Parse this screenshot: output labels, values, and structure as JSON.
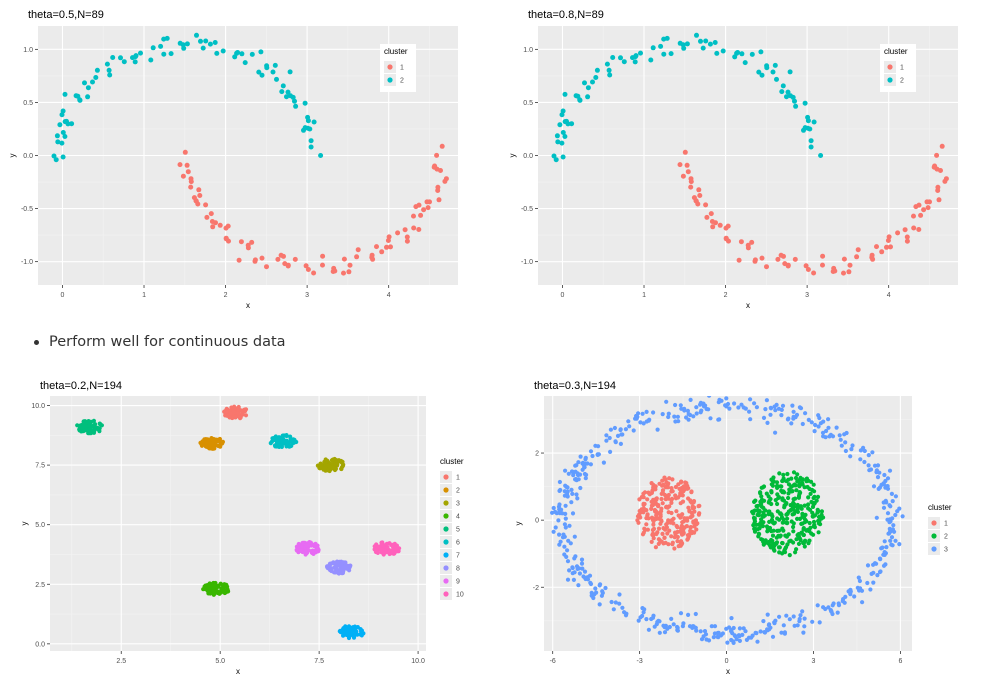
{
  "bullet": {
    "text": "Perform well for continuous data"
  },
  "colors": {
    "panel_bg": "#ebebeb",
    "grid_major": "#ffffff",
    "grid_minor": "#f3f3f3",
    "axis_text": "#4d4d4d",
    "title_text": "#000000"
  },
  "chart_data": [
    {
      "type": "scatter",
      "title": "theta=0.5,N=89",
      "xlabel": "x",
      "ylabel": "y",
      "xlim": [
        -0.3,
        4.85
      ],
      "ylim": [
        -1.22,
        1.22
      ],
      "x_ticks": [
        0,
        1,
        2,
        3,
        4
      ],
      "x_tick_labels": [
        "0",
        "1",
        "2",
        "3",
        "4"
      ],
      "y_ticks": [
        -1,
        -0.5,
        0,
        0.5,
        1
      ],
      "y_tick_labels": [
        "-1.0",
        "-0.5",
        "0.0",
        "0.5",
        "1.0"
      ],
      "grid": true,
      "legend": {
        "title": "cluster",
        "placement": "top-right inside",
        "entries": [
          "1",
          "2"
        ]
      },
      "series": [
        {
          "name": "1",
          "color": "#f8766d",
          "shape": "upper-moon",
          "params": {
            "cx": 3.1,
            "cy": 0,
            "rx": 1.55,
            "ry": 1.05,
            "from": 0,
            "to": 3.14,
            "flip": true,
            "n": 90,
            "noise": 0.05,
            "seed": 11
          }
        },
        {
          "name": "2",
          "color": "#00bfc4",
          "shape": "upper-moon",
          "params": {
            "cx": 1.5,
            "cy": 0,
            "rx": 1.55,
            "ry": 1.05,
            "from": 0.05,
            "to": 3.18,
            "flip": false,
            "n": 90,
            "noise": 0.05,
            "seed": 7
          }
        }
      ]
    },
    {
      "type": "scatter",
      "title": "theta=0.8,N=89",
      "xlabel": "x",
      "ylabel": "y",
      "xlim": [
        -0.3,
        4.85
      ],
      "ylim": [
        -1.22,
        1.22
      ],
      "x_ticks": [
        0,
        1,
        2,
        3,
        4
      ],
      "x_tick_labels": [
        "0",
        "1",
        "2",
        "3",
        "4"
      ],
      "y_ticks": [
        -1,
        -0.5,
        0,
        0.5,
        1
      ],
      "y_tick_labels": [
        "-1.0",
        "-0.5",
        "0.0",
        "0.5",
        "1.0"
      ],
      "grid": true,
      "legend": {
        "title": "cluster",
        "placement": "top-right inside",
        "entries": [
          "1",
          "2"
        ]
      },
      "series": [
        {
          "name": "1",
          "color": "#f8766d",
          "shape": "upper-moon",
          "params": {
            "cx": 3.1,
            "cy": 0,
            "rx": 1.55,
            "ry": 1.05,
            "from": 0,
            "to": 3.14,
            "flip": true,
            "n": 90,
            "noise": 0.05,
            "seed": 11
          }
        },
        {
          "name": "2",
          "color": "#00bfc4",
          "shape": "upper-moon",
          "params": {
            "cx": 1.5,
            "cy": 0,
            "rx": 1.55,
            "ry": 1.05,
            "from": 0.05,
            "to": 3.18,
            "flip": false,
            "n": 90,
            "noise": 0.05,
            "seed": 7
          }
        }
      ]
    },
    {
      "type": "scatter",
      "title": "theta=0.2,N=194",
      "xlabel": "x",
      "ylabel": "y",
      "xlim": [
        0.7,
        10.2
      ],
      "ylim": [
        -0.3,
        10.4
      ],
      "x_ticks": [
        2.5,
        5.0,
        7.5,
        10.0
      ],
      "x_tick_labels": [
        "2.5",
        "5.0",
        "7.5",
        "10.0"
      ],
      "y_ticks": [
        0,
        2.5,
        5.0,
        7.5,
        10.0
      ],
      "y_tick_labels": [
        "0.0",
        "2.5",
        "5.0",
        "7.5",
        "10.0"
      ],
      "grid": true,
      "legend": {
        "title": "cluster",
        "placement": "right",
        "entries": [
          "1",
          "2",
          "3",
          "4",
          "5",
          "6",
          "7",
          "8",
          "9",
          "10"
        ]
      },
      "series": [
        {
          "name": "1",
          "color": "#f8766d",
          "shape": "blob",
          "params": {
            "cx": 5.4,
            "cy": 9.7,
            "r": 0.32,
            "n": 70,
            "seed": 21
          }
        },
        {
          "name": "2",
          "color": "#d89000",
          "shape": "blob",
          "params": {
            "cx": 4.8,
            "cy": 8.4,
            "r": 0.32,
            "n": 70,
            "seed": 22
          }
        },
        {
          "name": "3",
          "color": "#a3a500",
          "shape": "blob",
          "params": {
            "cx": 7.8,
            "cy": 7.5,
            "r": 0.34,
            "n": 70,
            "seed": 23
          }
        },
        {
          "name": "4",
          "color": "#39b600",
          "shape": "blob",
          "params": {
            "cx": 4.9,
            "cy": 2.3,
            "r": 0.34,
            "n": 70,
            "seed": 24
          }
        },
        {
          "name": "5",
          "color": "#00bf7d",
          "shape": "blob",
          "params": {
            "cx": 1.7,
            "cy": 9.1,
            "r": 0.34,
            "n": 70,
            "seed": 25
          }
        },
        {
          "name": "6",
          "color": "#00bfc4",
          "shape": "blob",
          "params": {
            "cx": 6.6,
            "cy": 8.5,
            "r": 0.34,
            "n": 70,
            "seed": 26
          }
        },
        {
          "name": "7",
          "color": "#00b0f6",
          "shape": "blob",
          "params": {
            "cx": 8.3,
            "cy": 0.5,
            "r": 0.34,
            "n": 70,
            "seed": 27
          }
        },
        {
          "name": "8",
          "color": "#9590ff",
          "shape": "blob",
          "params": {
            "cx": 8.0,
            "cy": 3.2,
            "r": 0.32,
            "n": 70,
            "seed": 28
          }
        },
        {
          "name": "9",
          "color": "#e76bf3",
          "shape": "blob",
          "params": {
            "cx": 7.2,
            "cy": 4.0,
            "r": 0.34,
            "n": 70,
            "seed": 29
          }
        },
        {
          "name": "10",
          "color": "#ff62bc",
          "shape": "blob",
          "params": {
            "cx": 9.2,
            "cy": 4.0,
            "r": 0.34,
            "n": 70,
            "seed": 30
          }
        }
      ]
    },
    {
      "type": "scatter",
      "title": "theta=0.3,N=194",
      "xlabel": "x",
      "ylabel": "y",
      "xlim": [
        -6.3,
        6.4
      ],
      "ylim": [
        -3.9,
        3.7
      ],
      "x_ticks": [
        -6,
        -3,
        0,
        3,
        6
      ],
      "x_tick_labels": [
        "-6",
        "-3",
        "0",
        "3",
        "6"
      ],
      "y_ticks": [
        -2,
        0,
        2
      ],
      "y_tick_labels": [
        "-2",
        "0",
        "2"
      ],
      "grid": true,
      "legend": {
        "title": "cluster",
        "placement": "right",
        "entries": [
          "1",
          "2",
          "3"
        ]
      },
      "series": [
        {
          "name": "1",
          "color": "#f8766d",
          "shape": "disc",
          "params": {
            "cx": -2.0,
            "cy": 0.2,
            "r": 1.1,
            "n": 260,
            "seed": 41
          }
        },
        {
          "name": "2",
          "color": "#00ba38",
          "shape": "disc",
          "params": {
            "cx": 2.1,
            "cy": 0.2,
            "r": 1.25,
            "n": 330,
            "seed": 42
          }
        },
        {
          "name": "3",
          "color": "#619cff",
          "shape": "ring",
          "params": {
            "cx": 0,
            "cy": 0,
            "rx": 5.7,
            "ry": 3.4,
            "n": 520,
            "noise": 0.17,
            "seed": 43
          }
        }
      ]
    }
  ]
}
